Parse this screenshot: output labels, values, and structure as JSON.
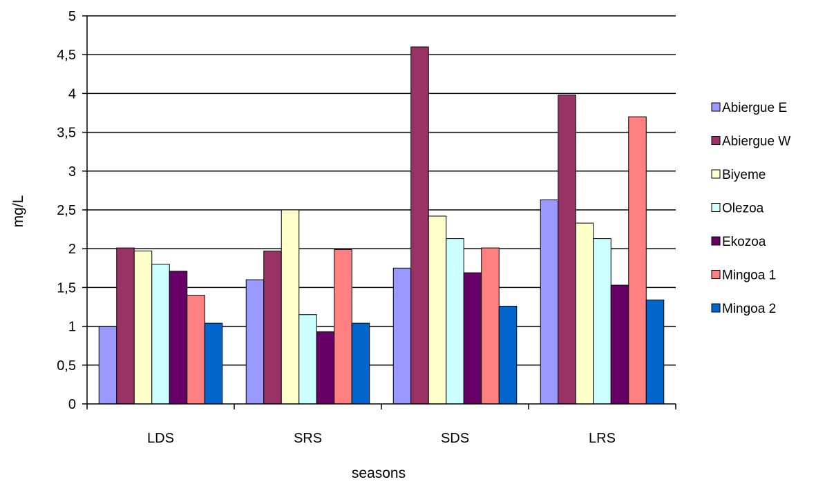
{
  "chart_data": {
    "type": "bar",
    "title": "",
    "xlabel": "seasons",
    "ylabel": "mg/L",
    "ylim": [
      0,
      5
    ],
    "yticks": [
      "0",
      "0,5",
      "1",
      "1,5",
      "2",
      "2,5",
      "3",
      "3,5",
      "4",
      "4,5",
      "5"
    ],
    "ytick_values": [
      0,
      0.5,
      1,
      1.5,
      2,
      2.5,
      3,
      3.5,
      4,
      4.5,
      5
    ],
    "grid": true,
    "legend_position": "right",
    "categories": [
      "LDS",
      "SRS",
      "SDS",
      "LRS"
    ],
    "series": [
      {
        "name": "Abiergue E",
        "color": "#9999ff",
        "values": [
          1.0,
          1.6,
          1.75,
          2.63
        ]
      },
      {
        "name": "Abiergue W",
        "color": "#993366",
        "values": [
          2.01,
          1.97,
          4.6,
          3.98
        ]
      },
      {
        "name": "Biyeme",
        "color": "#ffffcc",
        "values": [
          1.97,
          2.5,
          2.42,
          2.33
        ]
      },
      {
        "name": "Olezoa",
        "color": "#ccffff",
        "values": [
          1.8,
          1.15,
          2.13,
          2.13
        ]
      },
      {
        "name": "Ekozoa",
        "color": "#660066",
        "values": [
          1.71,
          0.93,
          1.69,
          1.53
        ]
      },
      {
        "name": "Mingoa 1",
        "color": "#ff8080",
        "values": [
          1.4,
          1.99,
          2.01,
          3.7
        ]
      },
      {
        "name": "Mingoa 2",
        "color": "#0066cc",
        "values": [
          1.04,
          1.04,
          1.26,
          1.34
        ]
      }
    ]
  }
}
